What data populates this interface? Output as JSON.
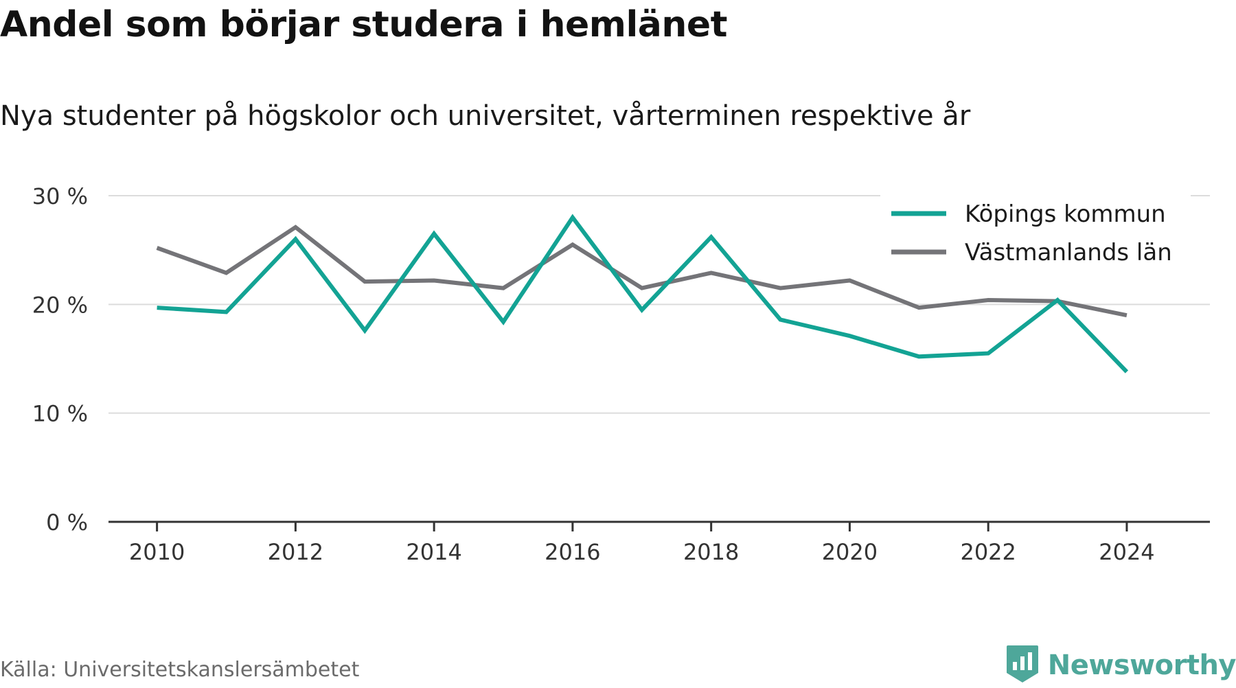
{
  "header": {
    "title": "Andel som börjar studera i hemlänet",
    "subtitle": "Nya studenter på högskolor och universitet, vårterminen respektive år"
  },
  "footer": {
    "source": "Källa: Universitetskanslersämbetet",
    "brand": "Newsworthy",
    "brand_icon": "newsworthy-logo-icon",
    "brand_color": "#4ea79a"
  },
  "chart_data": {
    "type": "line",
    "x": [
      2010,
      2011,
      2012,
      2013,
      2014,
      2015,
      2016,
      2017,
      2018,
      2019,
      2020,
      2021,
      2022,
      2023,
      2024
    ],
    "x_tick_labels": [
      "2010",
      "2012",
      "2014",
      "2016",
      "2018",
      "2020",
      "2022",
      "2024"
    ],
    "y_ticks": [
      0,
      10,
      20,
      30
    ],
    "y_tick_labels": [
      "0 %",
      "10 %",
      "20 %",
      "30 %"
    ],
    "ylim": [
      0,
      30
    ],
    "xlim": [
      2009.3,
      2025.2
    ],
    "grid": "horizontal",
    "legend": "top-right",
    "series": [
      {
        "name": "Köpings kommun",
        "color": "#13a394",
        "values": [
          19.7,
          19.3,
          26.0,
          17.6,
          26.5,
          18.4,
          28.0,
          19.5,
          26.2,
          18.6,
          17.1,
          15.2,
          15.5,
          20.4,
          13.8
        ]
      },
      {
        "name": "Västmanlands län",
        "color": "#747478",
        "values": [
          25.2,
          22.9,
          27.1,
          22.1,
          22.2,
          21.5,
          25.5,
          21.5,
          22.9,
          21.5,
          22.2,
          19.7,
          20.4,
          20.3,
          19.0
        ]
      }
    ]
  }
}
